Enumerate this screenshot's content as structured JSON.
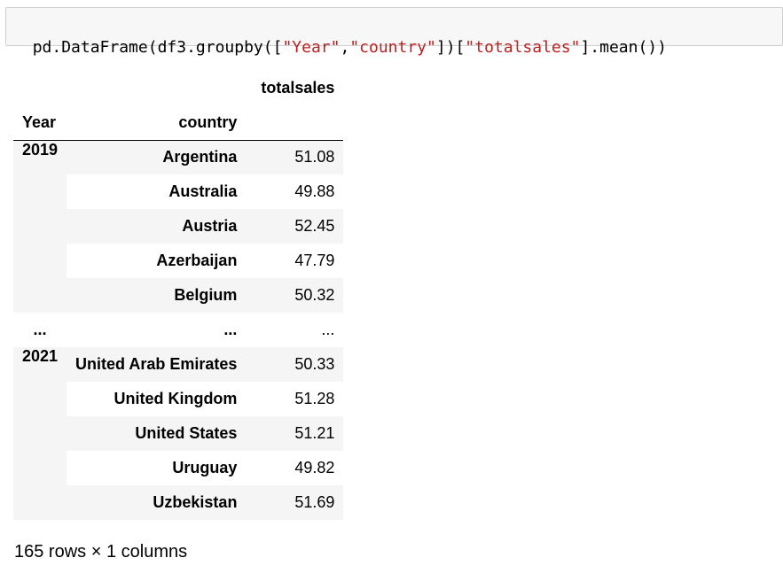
{
  "code": {
    "tokens": [
      {
        "t": "pd.DataFrame(df3.groupby([",
        "k": "plain"
      },
      {
        "t": "\"Year\"",
        "k": "str"
      },
      {
        "t": ",",
        "k": "plain"
      },
      {
        "t": "\"country\"",
        "k": "str"
      },
      {
        "t": "])[",
        "k": "plain"
      },
      {
        "t": "\"totalsales\"",
        "k": "str"
      },
      {
        "t": "].mean())",
        "k": "plain"
      }
    ]
  },
  "table": {
    "column_header": "totalsales",
    "index_names": [
      "Year",
      "country"
    ],
    "groups": [
      {
        "year": "2019",
        "rows": [
          {
            "country": "Argentina",
            "value": "51.08"
          },
          {
            "country": "Australia",
            "value": "49.88"
          },
          {
            "country": "Austria",
            "value": "52.45"
          },
          {
            "country": "Azerbaijan",
            "value": "47.79"
          },
          {
            "country": "Belgium",
            "value": "50.32"
          }
        ]
      },
      {
        "ellipsis": true,
        "year": "...",
        "rows": [
          {
            "country": "...",
            "value": "..."
          }
        ]
      },
      {
        "year": "2021",
        "rows": [
          {
            "country": "United Arab Emirates",
            "value": "50.33"
          },
          {
            "country": "United Kingdom",
            "value": "51.28"
          },
          {
            "country": "United States",
            "value": "51.21"
          },
          {
            "country": "Uruguay",
            "value": "49.82"
          },
          {
            "country": "Uzbekistan",
            "value": "51.69"
          }
        ]
      }
    ]
  },
  "footer": "165 rows × 1 columns"
}
